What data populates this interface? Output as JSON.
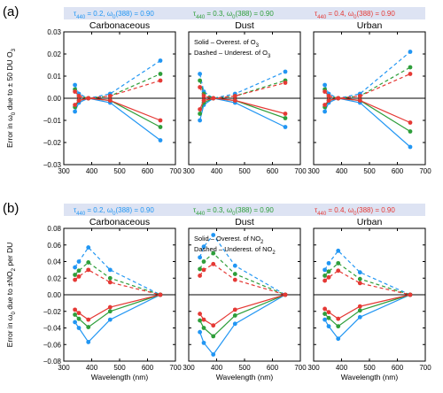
{
  "colors": {
    "s1": "#2196f3",
    "s2": "#2e9e3a",
    "s3": "#e53935",
    "legend_bg": "#dde3f3"
  },
  "chart_data": [
    {
      "type": "line",
      "panel_label": "(a)",
      "legend": [
        "τ440 = 0.2, ω0(388) = 0.90",
        "τ440 = 0.3, ω0(388) = 0.90",
        "τ440 = 0.4, ω0(388) = 0.90"
      ],
      "ylabel": "Error in ω0 due to ± 50 DU O3",
      "xlabel": "",
      "xlim": [
        300,
        700
      ],
      "ylim": [
        -0.03,
        0.03
      ],
      "xticks": [
        "300",
        "400",
        "500",
        "600",
        "700"
      ],
      "yticks": [
        "−0.03",
        "−0.02",
        "−0.01",
        "0.00",
        "0.01",
        "0.02",
        "0.03"
      ],
      "grid": false,
      "x": [
        340,
        354,
        388,
        466,
        646
      ],
      "subplots": [
        {
          "title": "Carbonaceous",
          "series": [
            {
              "color": "s1",
              "solid": [
                -0.006,
                -0.002,
                0.0,
                -0.002,
                -0.019
              ],
              "dashed": [
                0.006,
                0.002,
                0.0,
                0.002,
                0.017
              ]
            },
            {
              "color": "s2",
              "solid": [
                -0.004,
                -0.001,
                0.0,
                -0.001,
                -0.013
              ],
              "dashed": [
                0.004,
                0.001,
                0.0,
                0.001,
                0.011
              ]
            },
            {
              "color": "s3",
              "solid": [
                -0.003,
                -0.001,
                0.0,
                -0.001,
                -0.01
              ],
              "dashed": [
                0.003,
                0.001,
                0.0,
                0.001,
                0.008
              ]
            }
          ]
        },
        {
          "title": "Dust",
          "annotation": [
            "Solid – Overest. of O3",
            "Dashed – Underest. of O3"
          ],
          "series": [
            {
              "color": "s1",
              "solid": [
                -0.01,
                -0.003,
                0.0,
                -0.002,
                -0.013
              ],
              "dashed": [
                0.011,
                0.003,
                0.0,
                0.002,
                0.012
              ]
            },
            {
              "color": "s2",
              "solid": [
                -0.007,
                -0.002,
                0.0,
                -0.001,
                -0.009
              ],
              "dashed": [
                0.008,
                0.002,
                0.0,
                0.001,
                0.008
              ]
            },
            {
              "color": "s3",
              "solid": [
                -0.005,
                -0.001,
                0.0,
                -0.001,
                -0.007
              ],
              "dashed": [
                0.005,
                0.001,
                0.0,
                0.001,
                0.007
              ]
            }
          ]
        },
        {
          "title": "Urban",
          "series": [
            {
              "color": "s1",
              "solid": [
                -0.006,
                -0.002,
                0.0,
                -0.002,
                -0.022
              ],
              "dashed": [
                0.006,
                0.002,
                0.0,
                0.002,
                0.021
              ]
            },
            {
              "color": "s2",
              "solid": [
                -0.004,
                -0.001,
                0.0,
                -0.001,
                -0.015
              ],
              "dashed": [
                0.004,
                0.001,
                0.0,
                0.001,
                0.014
              ]
            },
            {
              "color": "s3",
              "solid": [
                -0.003,
                -0.001,
                0.0,
                -0.001,
                -0.011
              ],
              "dashed": [
                0.003,
                0.001,
                0.0,
                0.001,
                0.011
              ]
            }
          ]
        }
      ]
    },
    {
      "type": "line",
      "panel_label": "(b)",
      "legend": [
        "τ440 = 0.2, ω0(388) = 0.90",
        "τ440 = 0.3, ω0(388) = 0.90",
        "τ440 = 0.4, ω0(388) = 0.90"
      ],
      "ylabel": "Error in ω0 due to ±NO2 per DU",
      "xlabel": "Wavelength (nm)",
      "xlim": [
        300,
        700
      ],
      "ylim": [
        -0.08,
        0.08
      ],
      "xticks": [
        "300",
        "400",
        "500",
        "600",
        "700"
      ],
      "yticks": [
        "−0.08",
        "−0.06",
        "−0.04",
        "−0.02",
        "0.00",
        "0.02",
        "0.04",
        "0.06",
        "0.08"
      ],
      "grid": false,
      "x": [
        340,
        354,
        388,
        466,
        646
      ],
      "subplots": [
        {
          "title": "Carbonaceous",
          "series": [
            {
              "color": "s1",
              "solid": [
                -0.033,
                -0.04,
                -0.057,
                -0.03,
                0.0
              ],
              "dashed": [
                0.033,
                0.04,
                0.057,
                0.03,
                0.0
              ]
            },
            {
              "color": "s2",
              "solid": [
                -0.024,
                -0.029,
                -0.039,
                -0.02,
                0.0
              ],
              "dashed": [
                0.024,
                0.029,
                0.039,
                0.02,
                0.0
              ]
            },
            {
              "color": "s3",
              "solid": [
                -0.018,
                -0.022,
                -0.03,
                -0.015,
                0.0
              ],
              "dashed": [
                0.018,
                0.022,
                0.03,
                0.015,
                0.0
              ]
            }
          ]
        },
        {
          "title": "Dust",
          "annotation": [
            "Solid – Overest. of NO2",
            "Dashed – Underest. of NO2"
          ],
          "series": [
            {
              "color": "s1",
              "solid": [
                -0.045,
                -0.058,
                -0.072,
                -0.035,
                0.0
              ],
              "dashed": [
                0.045,
                0.058,
                0.072,
                0.035,
                0.0
              ]
            },
            {
              "color": "s2",
              "solid": [
                -0.031,
                -0.04,
                -0.05,
                -0.025,
                0.0
              ],
              "dashed": [
                0.031,
                0.04,
                0.05,
                0.025,
                0.0
              ]
            },
            {
              "color": "s3",
              "solid": [
                -0.023,
                -0.03,
                -0.037,
                -0.018,
                0.0
              ],
              "dashed": [
                0.023,
                0.03,
                0.037,
                0.018,
                0.0
              ]
            }
          ]
        },
        {
          "title": "Urban",
          "series": [
            {
              "color": "s1",
              "solid": [
                -0.03,
                -0.038,
                -0.053,
                -0.027,
                0.0
              ],
              "dashed": [
                0.03,
                0.038,
                0.053,
                0.027,
                0.0
              ]
            },
            {
              "color": "s2",
              "solid": [
                -0.023,
                -0.028,
                -0.038,
                -0.019,
                0.0
              ],
              "dashed": [
                0.023,
                0.028,
                0.038,
                0.019,
                0.0
              ]
            },
            {
              "color": "s3",
              "solid": [
                -0.017,
                -0.021,
                -0.029,
                -0.014,
                0.0
              ],
              "dashed": [
                0.017,
                0.021,
                0.029,
                0.014,
                0.0
              ]
            }
          ]
        }
      ]
    }
  ]
}
